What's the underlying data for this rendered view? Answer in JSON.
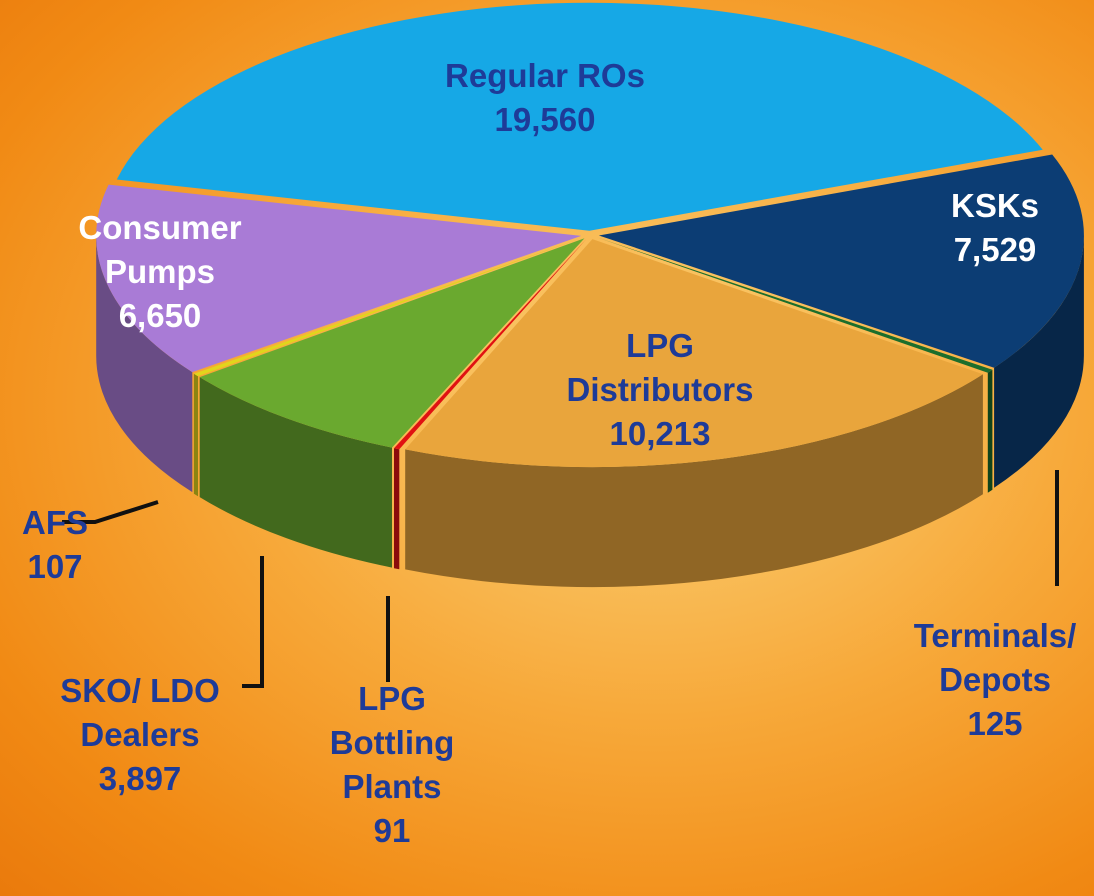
{
  "chart_data": {
    "type": "pie",
    "categories": [
      "Regular ROs",
      "KSKs",
      "Terminals/ Depots",
      "LPG Distributors",
      "LPG Bottling Plants",
      "SKO/ LDO Dealers",
      "AFS",
      "Consumer Pumps"
    ],
    "values": [
      19560,
      7529,
      125,
      10213,
      91,
      3897,
      107,
      6650
    ],
    "value_labels": [
      "19,560",
      "7,529",
      "125",
      "10,213",
      "91",
      "3,897",
      "107",
      "6,650"
    ],
    "colors": [
      "#16a8e6",
      "#0c3d74",
      "#1c6e2c",
      "#e9a53c",
      "#e01212",
      "#6aa92f",
      "#e2d51c",
      "#a97bd6"
    ]
  }
}
